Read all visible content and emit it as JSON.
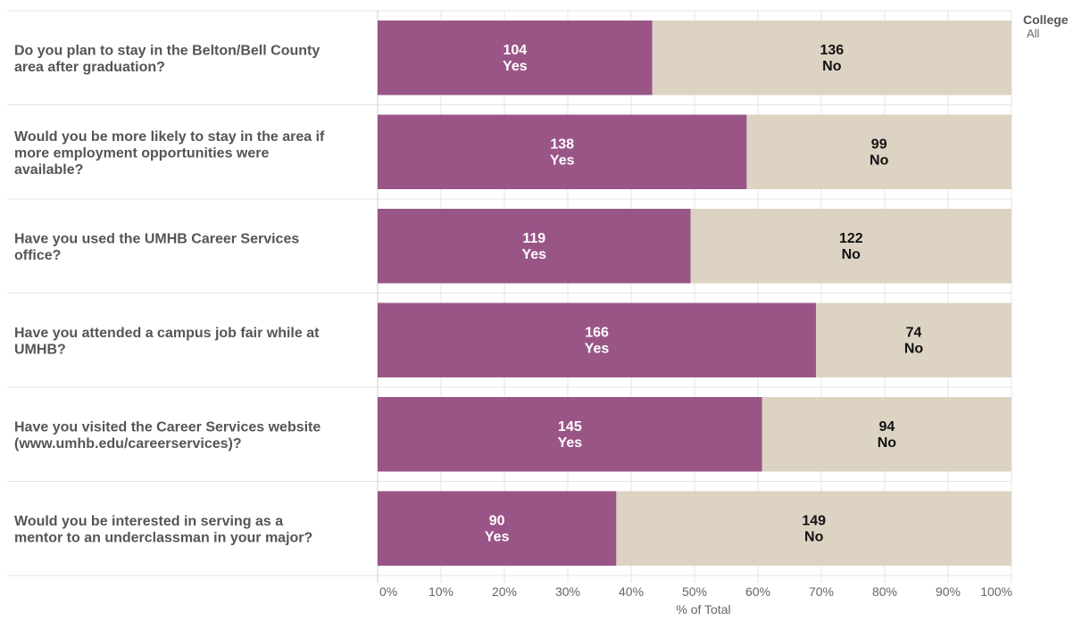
{
  "filter": {
    "title": "College",
    "value": "All"
  },
  "colors": {
    "yes": "#9a5587",
    "no": "#dcd3c3",
    "gridline": "#e4e4e4",
    "axis": "#cccccc"
  },
  "chart_data": {
    "type": "bar",
    "orientation": "horizontal",
    "stacked": true,
    "normalized": true,
    "categories": [
      [
        "Do you plan to stay in the Belton/Bell County",
        "area after graduation?"
      ],
      [
        "Would you be more likely to stay in the area if",
        "more employment opportunities were",
        "available?"
      ],
      [
        "Have you used the UMHB Career Services",
        "office?"
      ],
      [
        "Have you attended a campus job fair while at",
        "UMHB?"
      ],
      [
        "Have you visited the Career Services website",
        "(www.umhb.edu/careerservices)?"
      ],
      [
        "Would you be interested in serving as a",
        "mentor to an underclassman in your major?"
      ]
    ],
    "series": [
      {
        "name": "Yes",
        "values": [
          104,
          138,
          119,
          166,
          145,
          90
        ]
      },
      {
        "name": "No",
        "values": [
          136,
          99,
          122,
          74,
          94,
          149
        ]
      }
    ],
    "xlabel": "% of Total",
    "xlim": [
      0,
      100
    ],
    "xticks": [
      "0%",
      "10%",
      "20%",
      "30%",
      "40%",
      "50%",
      "60%",
      "70%",
      "80%",
      "90%",
      "100%"
    ],
    "grid": true
  }
}
